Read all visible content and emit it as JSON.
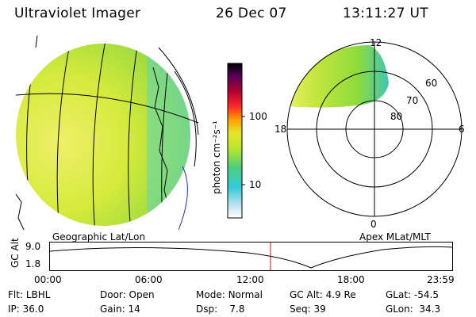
{
  "header": {
    "instrument": "Ultraviolet Imager",
    "date": "26 Dec 07",
    "time": "13:11:27 UT"
  },
  "panels": {
    "left_label": "Geographic Lat/Lon",
    "right_label": "Apex MLat/MLT"
  },
  "colorbar": {
    "unit_label": "photon cm⁻²s⁻¹",
    "ticks": [
      "100",
      "10"
    ],
    "scale": "log",
    "colors": [
      "#ffffff",
      "#bfe3ef",
      "#33c9d9",
      "#4fcf7a",
      "#b8e62e",
      "#e6e62a",
      "#ff9a00",
      "#ff2a2a",
      "#b00030",
      "#55005a",
      "#000000"
    ]
  },
  "polar_plot": {
    "lat_labels": [
      "60",
      "70",
      "80"
    ],
    "mlt_labels": [
      "12",
      "18",
      "6",
      "0"
    ]
  },
  "altitude_plot": {
    "ylabel": "GC Alt",
    "yticks": [
      "9.0",
      "1.8"
    ],
    "xticks": [
      "00:00",
      "06:00",
      "12:00",
      "18:00",
      "23:59"
    ],
    "current_marker_color": "#e00000"
  },
  "info": {
    "filter": {
      "label": "Flt:",
      "value": "LBHL"
    },
    "ip": {
      "label": "IP:",
      "value": "36.0"
    },
    "door": {
      "label": "Door:",
      "value": "Open"
    },
    "gain": {
      "label": "Gain:",
      "value": "14"
    },
    "mode": {
      "label": "Mode:",
      "value": "Normal"
    },
    "dsp": {
      "label": "Dsp:",
      "value": "7.8"
    },
    "gc_alt": {
      "label": "GC Alt:",
      "value": "4.9 Re"
    },
    "seq": {
      "label": "Seq:",
      "value": "39"
    },
    "glat": {
      "label": "GLat:",
      "value": "-54.5"
    },
    "glon": {
      "label": "GLon:",
      "value": "34.3"
    }
  }
}
